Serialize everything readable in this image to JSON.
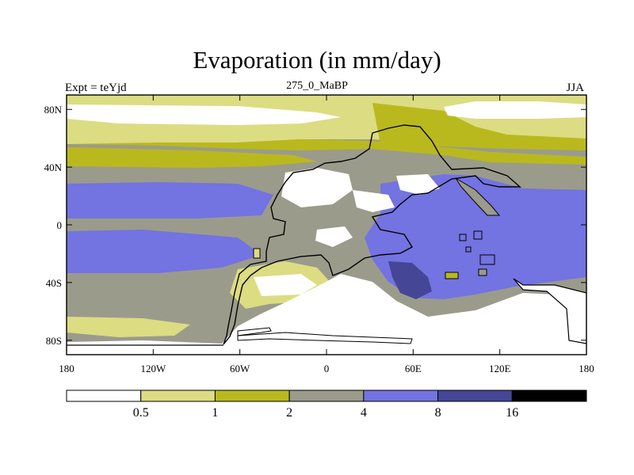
{
  "title": "Evaporation (in mm/day)",
  "left_label": "Expt = teYjd",
  "center_label": "275_0_MaBP",
  "right_label": "JJA",
  "map": {
    "lon_range": [
      -180,
      180
    ],
    "lat_range": [
      -90,
      90
    ],
    "lat_ticks": [
      {
        "value": 80,
        "label": "80N"
      },
      {
        "value": 40,
        "label": "40N"
      },
      {
        "value": 0,
        "label": "0"
      },
      {
        "value": -40,
        "label": "40S"
      },
      {
        "value": -80,
        "label": "80S"
      }
    ],
    "lon_ticks": [
      {
        "value": -180,
        "label": "180"
      },
      {
        "value": -120,
        "label": "120W"
      },
      {
        "value": -60,
        "label": "60W"
      },
      {
        "value": 0,
        "label": "0"
      },
      {
        "value": 60,
        "label": "60E"
      },
      {
        "value": 120,
        "label": "120E"
      },
      {
        "value": 180,
        "label": "180"
      }
    ]
  },
  "colorbar": {
    "colors": [
      "#ffffff",
      "#dcdc82",
      "#b9b91e",
      "#9b9b8c",
      "#7373e1",
      "#464696",
      "#000000"
    ],
    "labels": [
      "0.5",
      "1",
      "2",
      "4",
      "8",
      "16"
    ]
  }
}
